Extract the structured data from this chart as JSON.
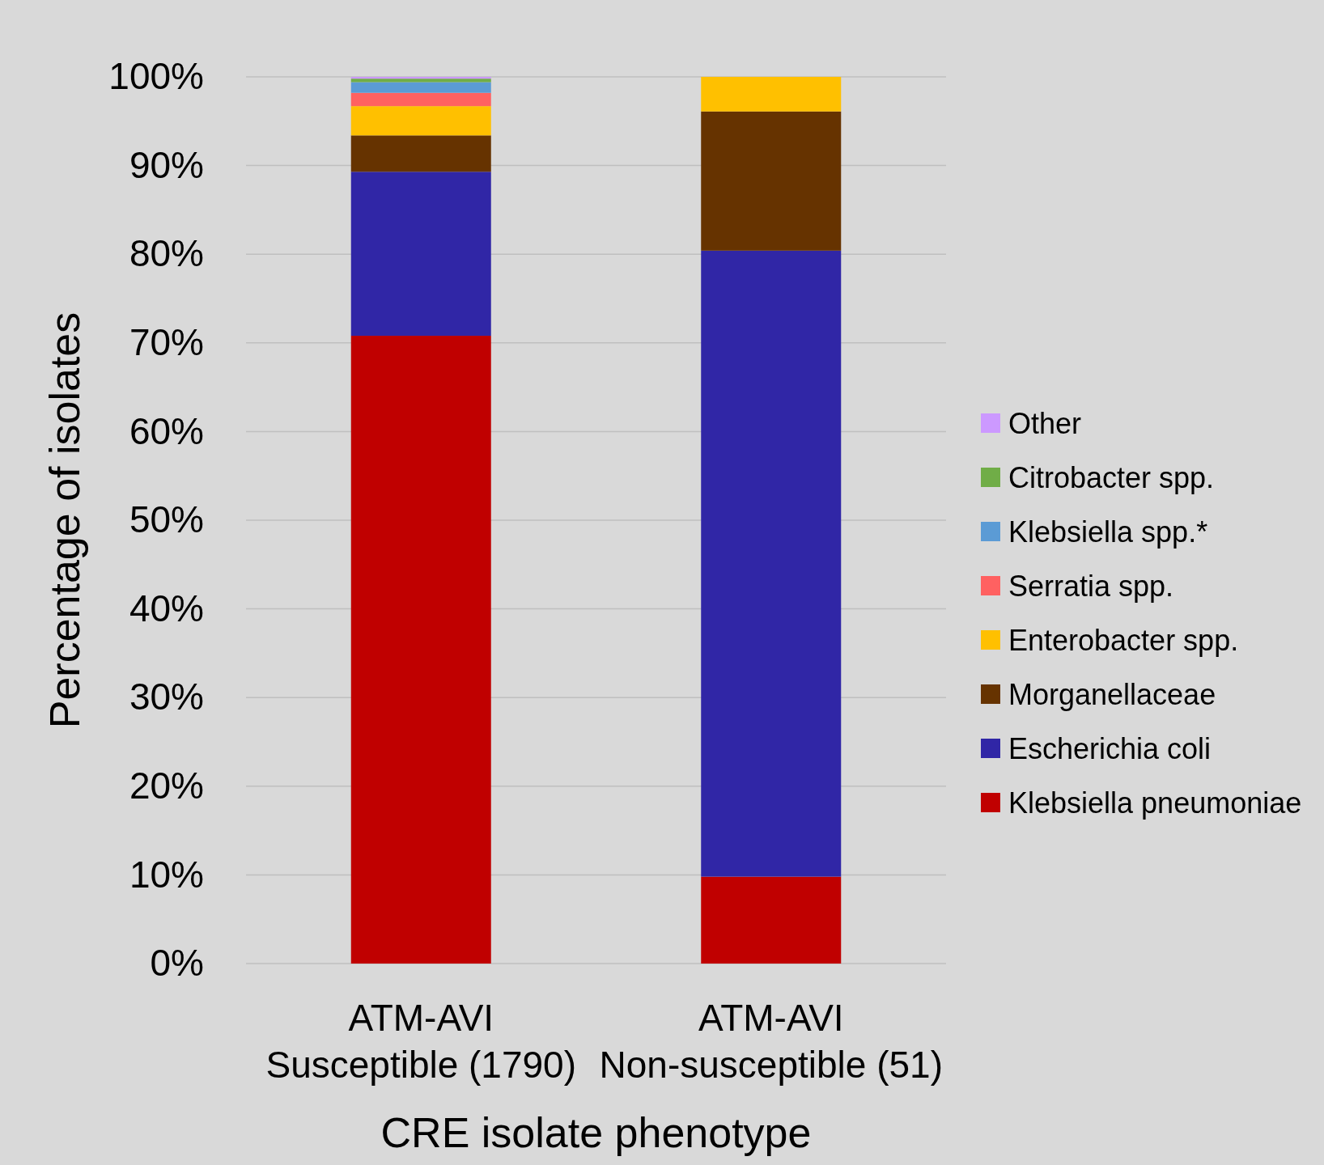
{
  "chart_data": {
    "type": "bar",
    "stacked": true,
    "xlabel": "CRE isolate phenotype",
    "ylabel": "Percentage of isolates",
    "categories": [
      "ATM-AVI\nSusceptible (1790)",
      "ATM-AVI\nNon-susceptible (51)"
    ],
    "ylim": [
      0,
      100
    ],
    "yticks": [
      {
        "value": 0,
        "label": "0%"
      },
      {
        "value": 10,
        "label": "10%"
      },
      {
        "value": 20,
        "label": "20%"
      },
      {
        "value": 30,
        "label": "30%"
      },
      {
        "value": 40,
        "label": "40%"
      },
      {
        "value": 50,
        "label": "50%"
      },
      {
        "value": 60,
        "label": "60%"
      },
      {
        "value": 70,
        "label": "70%"
      },
      {
        "value": 80,
        "label": "80%"
      },
      {
        "value": 90,
        "label": "90%"
      },
      {
        "value": 100,
        "label": "100%"
      }
    ],
    "grid": "y",
    "legend": "right",
    "series": [
      {
        "name": "Klebsiella pneumoniae",
        "color": "#c00000",
        "values": [
          70.8,
          9.8
        ]
      },
      {
        "name": "Escherichia coli",
        "color": "#3026a6",
        "values": [
          18.5,
          70.6
        ]
      },
      {
        "name": "Morganellaceae",
        "color": "#663300",
        "values": [
          4.1,
          15.7
        ]
      },
      {
        "name": "Enterobacter spp.",
        "color": "#ffc000",
        "values": [
          3.3,
          3.9
        ]
      },
      {
        "name": "Serratia spp.",
        "color": "#ff6161",
        "values": [
          1.5,
          0
        ]
      },
      {
        "name": "Klebsiella spp.*",
        "color": "#5b9bd5",
        "values": [
          1.2,
          0
        ]
      },
      {
        "name": "Citrobacter spp.",
        "color": "#70ad47",
        "values": [
          0.4,
          0
        ]
      },
      {
        "name": "Other",
        "color": "#cc99ff",
        "values": [
          0.2,
          0
        ]
      }
    ]
  }
}
